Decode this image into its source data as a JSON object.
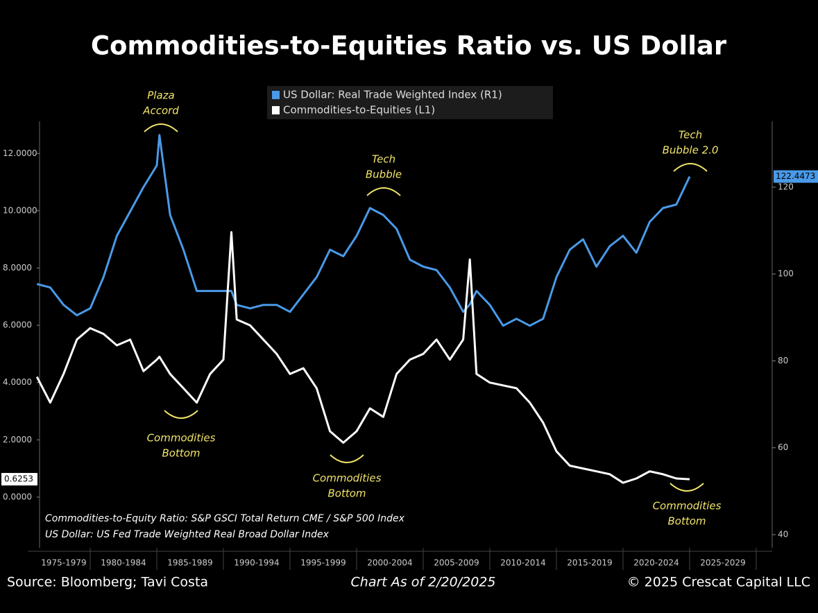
{
  "chart_data": {
    "type": "line",
    "title": "Commodities-to-Equities Ratio vs. US Dollar",
    "x": [
      1976,
      1977,
      1978,
      1979,
      1980,
      1981,
      1982,
      1983,
      1984,
      1985,
      1985.2,
      1986,
      1987,
      1988,
      1989,
      1990,
      1990.6,
      1991,
      1992,
      1993,
      1994,
      1995,
      1996,
      1997,
      1998,
      1999,
      2000,
      2001,
      2002,
      2003,
      2004,
      2005,
      2006,
      2007,
      2008,
      2008.5,
      2009,
      2010,
      2011,
      2012,
      2013,
      2014,
      2015,
      2016,
      2017,
      2018,
      2019,
      2020,
      2021,
      2022,
      2023,
      2024,
      2025
    ],
    "series": [
      {
        "name": "US Dollar: Real Trade Weighted Index (R1)",
        "color": "#4a9ae8",
        "axis": "y2",
        "values": [
          97.7,
          96.9,
          92.9,
          90.5,
          92.1,
          99.3,
          108.8,
          114.4,
          120,
          125,
          132,
          113.6,
          105.6,
          96.1,
          96.1,
          96.1,
          96.1,
          92.9,
          92.1,
          92.9,
          92.9,
          91.3,
          95.3,
          99.3,
          105.6,
          104.1,
          108.8,
          115.2,
          113.6,
          110.4,
          103.3,
          101.7,
          100.9,
          96.9,
          91.3,
          93,
          96.1,
          92.9,
          88.1,
          89.7,
          88.1,
          89.7,
          99.3,
          105.6,
          108,
          101.7,
          106.4,
          108.8,
          104.9,
          112,
          115.2,
          116,
          122.4473
        ]
      },
      {
        "name": "Commodities-to-Equities (L1)",
        "color": "#ffffff",
        "axis": "y",
        "values": [
          4.2,
          3.3,
          4.3,
          5.5,
          5.9,
          5.7,
          5.3,
          5.5,
          4.4,
          4.8,
          4.9,
          4.3,
          3.8,
          3.3,
          4.3,
          4.8,
          9.25,
          6.2,
          6.0,
          5.5,
          5.0,
          4.3,
          4.5,
          3.8,
          2.3,
          1.9,
          2.3,
          3.1,
          2.8,
          4.3,
          4.8,
          5.0,
          5.5,
          4.8,
          5.5,
          8.3,
          4.3,
          4.0,
          3.9,
          3.8,
          3.3,
          2.6,
          1.6,
          1.1,
          1.0,
          0.9,
          0.8,
          0.5,
          0.65,
          0.9,
          0.8,
          0.65,
          0.6253
        ]
      }
    ],
    "xlim": [
      1976.2,
      2031.2
    ],
    "xticks": [
      {
        "value": 1977.5,
        "label": "1975-1979"
      },
      {
        "value": 1982.5,
        "label": "1980-1984"
      },
      {
        "value": 1987.5,
        "label": "1985-1989"
      },
      {
        "value": 1992.5,
        "label": "1990-1994"
      },
      {
        "value": 1997.5,
        "label": "1995-1999"
      },
      {
        "value": 2002.5,
        "label": "2000-2004"
      },
      {
        "value": 2007.5,
        "label": "2005-2009"
      },
      {
        "value": 2012.5,
        "label": "2010-2014"
      },
      {
        "value": 2017.5,
        "label": "2015-2019"
      },
      {
        "value": 2022.5,
        "label": "2020-2024"
      },
      {
        "value": 2027.5,
        "label": "2025-2029"
      }
    ],
    "x_boundaries": [
      1980,
      1985,
      1990,
      1995,
      2000,
      2005,
      2010,
      2015,
      2020,
      2025,
      2030
    ],
    "ylim": [
      -1.77,
      13.12
    ],
    "yticks": [
      {
        "value": 0,
        "label": "0.0000"
      },
      {
        "value": 2,
        "label": "2.0000"
      },
      {
        "value": 4,
        "label": "4.0000"
      },
      {
        "value": 6,
        "label": "6.0000"
      },
      {
        "value": 8,
        "label": "8.0000"
      },
      {
        "value": 10,
        "label": "10.0000"
      },
      {
        "value": 12,
        "label": "12.0000"
      }
    ],
    "y2lim": [
      36.97,
      135.15
    ],
    "y2ticks": [
      40,
      60,
      80,
      100,
      120
    ],
    "grid": false,
    "annotations": [
      {
        "lines": [
          "Plaza",
          "Accord"
        ]
      },
      {
        "lines": [
          "Tech",
          "Bubble"
        ]
      },
      {
        "lines": [
          "Tech",
          "Bubble 2.0"
        ]
      },
      {
        "lines": [
          "Commodities",
          "Bottom"
        ]
      },
      {
        "lines": [
          "Commodities",
          "Bottom"
        ]
      },
      {
        "lines": [
          "Commodities",
          "Bottom"
        ]
      }
    ],
    "notes": [
      "Commodities-to-Equity Ratio: S&P GSCI Total Return CME / S&P 500 Index",
      "US Dollar: US Fed Trade Weighted Real Broad Dollar Index"
    ]
  },
  "footer": {
    "source": "Source: Bloomberg; Tavi Costa",
    "date": "Chart As of 2/20/2025",
    "copyright": "© 2025 Crescat Capital LLC"
  }
}
